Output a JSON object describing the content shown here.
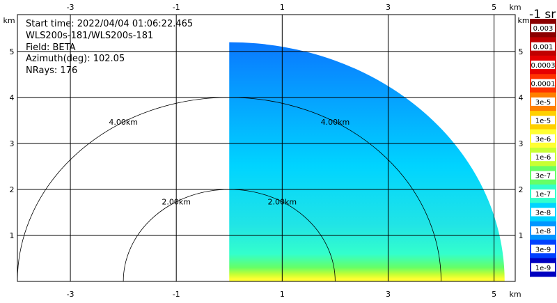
{
  "chart_data": {
    "type": "heatmap",
    "title": "",
    "info": [
      "Start time: 2022/04/04 01:06:22.465",
      "WLS200s-181/WLS200s-181",
      "Field: BETA",
      "Azimuth(deg): 102.05",
      "NRays: 176"
    ],
    "x_unit": "km",
    "y_unit": "km",
    "xlim": [
      -4.0,
      5.4
    ],
    "ylim": [
      0.0,
      5.8
    ],
    "x_ticks": [
      -3,
      -1,
      1,
      3,
      5
    ],
    "y_ticks": [
      1,
      2,
      3,
      4,
      5
    ],
    "grid": true,
    "range_rings": [
      {
        "radius": 2.0,
        "label": "2.00km"
      },
      {
        "radius": 4.0,
        "label": "4.00km"
      }
    ],
    "scan": {
      "sector_azimuth_start_deg": 0,
      "sector_azimuth_end_deg": 90,
      "max_range_km": 5.2
    },
    "colorbar": {
      "title": "-1 sr",
      "labels": [
        "0.003",
        "0.001",
        "0.0003",
        "0.0001",
        "3e-5",
        "1e-5",
        "3e-6",
        "1e-6",
        "3e-7",
        "1e-7",
        "3e-8",
        "1e-8",
        "3e-9",
        "1e-9"
      ],
      "colors": [
        "#8b0000",
        "#c00000",
        "#e60000",
        "#ff3300",
        "#ff8000",
        "#ffd000",
        "#ffff33",
        "#c8ff33",
        "#66ff66",
        "#33ffcc",
        "#00d4ff",
        "#0095ff",
        "#0040ff",
        "#0000c0"
      ]
    },
    "field_profile": [
      {
        "y": 0.05,
        "color": "#ffff33"
      },
      {
        "y": 0.15,
        "color": "#c8ff33"
      },
      {
        "y": 0.3,
        "color": "#66ff66"
      },
      {
        "y": 0.6,
        "color": "#33ffcc"
      },
      {
        "y": 1.2,
        "color": "#22e5e5"
      },
      {
        "y": 2.5,
        "color": "#00d4ff"
      },
      {
        "y": 5.2,
        "color": "#0a78ff"
      }
    ]
  }
}
